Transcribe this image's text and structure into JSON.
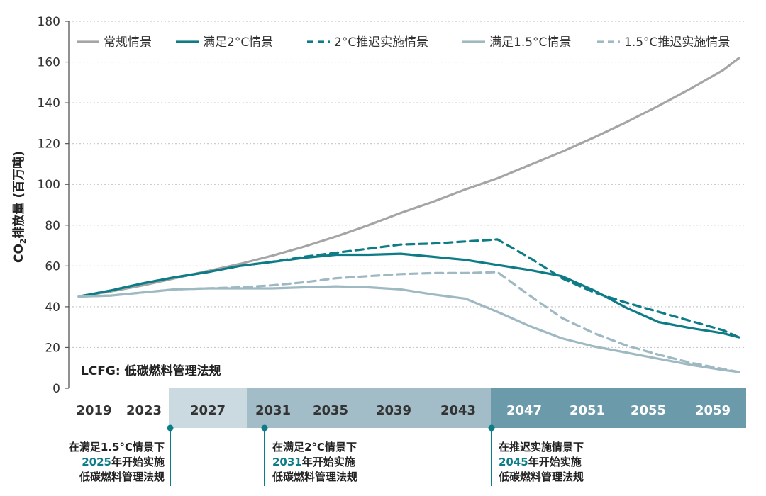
{
  "chart_data": {
    "type": "line",
    "ylabel": "CO2排放量 (百万吨)",
    "ylim": [
      0,
      180
    ],
    "yticks": [
      0,
      20,
      40,
      60,
      80,
      100,
      120,
      140,
      160,
      180
    ],
    "xlim": [
      2019,
      2060
    ],
    "x_tick_labels": [
      "2019",
      "2023",
      "2027",
      "2031",
      "2035",
      "2039",
      "2043",
      "2047",
      "2051",
      "2055",
      "2059"
    ],
    "grid": "horizontal dotted",
    "legend_position": "top",
    "series": [
      {
        "name": "常规情景",
        "color": "#a5a5a5",
        "style": "solid",
        "x": [
          2019,
          2021,
          2023,
          2025,
          2027,
          2029,
          2031,
          2033,
          2035,
          2037,
          2039,
          2041,
          2043,
          2045,
          2047,
          2049,
          2051,
          2053,
          2055,
          2057,
          2059,
          2060
        ],
        "y": [
          45,
          47.5,
          50.5,
          54,
          57.5,
          61,
          65,
          69.5,
          74.5,
          80,
          86,
          91.5,
          97.5,
          103,
          109.5,
          116,
          123,
          130.5,
          138.5,
          147,
          156,
          162
        ]
      },
      {
        "name": "满足2°C情景",
        "color": "#0e7c86",
        "style": "solid",
        "x": [
          2019,
          2021,
          2023,
          2025,
          2027,
          2029,
          2031,
          2033,
          2035,
          2037,
          2039,
          2041,
          2043,
          2045,
          2047,
          2049,
          2051,
          2053,
          2055,
          2057,
          2059,
          2060
        ],
        "y": [
          45,
          48,
          51.5,
          54.5,
          57,
          60,
          62,
          64,
          65.5,
          65.5,
          66,
          64.5,
          63,
          60.5,
          58,
          55,
          48,
          39.5,
          32.5,
          29.5,
          27,
          25
        ]
      },
      {
        "name": "2°C推迟实施情景",
        "color": "#0e7c86",
        "style": "dashed",
        "x": [
          2019,
          2021,
          2023,
          2025,
          2027,
          2029,
          2031,
          2033,
          2035,
          2037,
          2039,
          2041,
          2043,
          2045,
          2047,
          2049,
          2051,
          2053,
          2055,
          2057,
          2059,
          2060
        ],
        "y": [
          45,
          48,
          51.5,
          54.5,
          57,
          60,
          62,
          64.5,
          66.5,
          68.5,
          70.5,
          71,
          72,
          73,
          64,
          54,
          47,
          42,
          37.5,
          33,
          28.5,
          25
        ]
      },
      {
        "name": "满足1.5°C情景",
        "color": "#9fb9c3",
        "style": "solid",
        "x": [
          2019,
          2021,
          2023,
          2025,
          2027,
          2029,
          2031,
          2033,
          2035,
          2037,
          2039,
          2041,
          2043,
          2045,
          2047,
          2049,
          2051,
          2053,
          2055,
          2057,
          2059,
          2060
        ],
        "y": [
          45,
          45.5,
          47,
          48.5,
          49,
          49,
          49,
          49.5,
          50,
          49.5,
          48.5,
          46,
          44,
          37.5,
          30.5,
          24.5,
          20.5,
          17.5,
          14.5,
          11.5,
          9,
          8
        ]
      },
      {
        "name": "1.5°C推迟实施情景",
        "color": "#9fb9c3",
        "style": "dashed",
        "x": [
          2019,
          2021,
          2023,
          2025,
          2027,
          2029,
          2031,
          2033,
          2035,
          2037,
          2039,
          2041,
          2043,
          2045,
          2047,
          2049,
          2051,
          2053,
          2055,
          2057,
          2059,
          2060
        ],
        "y": [
          45,
          45.5,
          47,
          48.5,
          49,
          49.5,
          50.5,
          52,
          54,
          55,
          56,
          56.5,
          56.5,
          57,
          45.5,
          34.5,
          27,
          21,
          16.5,
          12.5,
          9.5,
          8
        ]
      }
    ],
    "bands": [
      {
        "label": "2019",
        "color": "#ffffff",
        "text_color": "#333333"
      },
      {
        "label": "2023",
        "color": "#ffffff",
        "text_color": "#333333"
      },
      {
        "label": "2027",
        "color": "#cbdae1",
        "text_color": "#333333"
      },
      {
        "label": "2031",
        "color": "#a2bdc7",
        "text_color": "#333333"
      },
      {
        "label": "2035",
        "color": "#a2bdc7",
        "text_color": "#333333"
      },
      {
        "label": "2039",
        "color": "#a2bdc7",
        "text_color": "#333333"
      },
      {
        "label": "2043",
        "color": "#a2bdc7",
        "text_color": "#333333"
      },
      {
        "label": "2047",
        "color": "#6b9aaa",
        "text_color": "#ffffff"
      },
      {
        "label": "2051",
        "color": "#6b9aaa",
        "text_color": "#ffffff"
      },
      {
        "label": "2055",
        "color": "#6b9aaa",
        "text_color": "#ffffff"
      },
      {
        "label": "2059",
        "color": "#6b9aaa",
        "text_color": "#ffffff"
      }
    ],
    "inner_note": "LCFG: 低碳燃料管理法规",
    "annotations": [
      {
        "year": 2025,
        "line1": "在满足1.5°C情景下",
        "year_text": "2025",
        "line2_suffix": "年开始实施",
        "line3": "低碳燃料管理法规",
        "color": "#0e7c86"
      },
      {
        "year": 2031,
        "line1": "在满足2°C情景下",
        "year_text": "2031",
        "line2_suffix": "年开始实施",
        "line3": "低碳燃料管理法规",
        "color": "#0e7c86"
      },
      {
        "year": 2045,
        "line1": "在推迟实施情景下",
        "year_text": "2045",
        "line2_suffix": "年开始实施",
        "line3": "低碳燃料管理法规",
        "color": "#0e7c86"
      }
    ]
  }
}
